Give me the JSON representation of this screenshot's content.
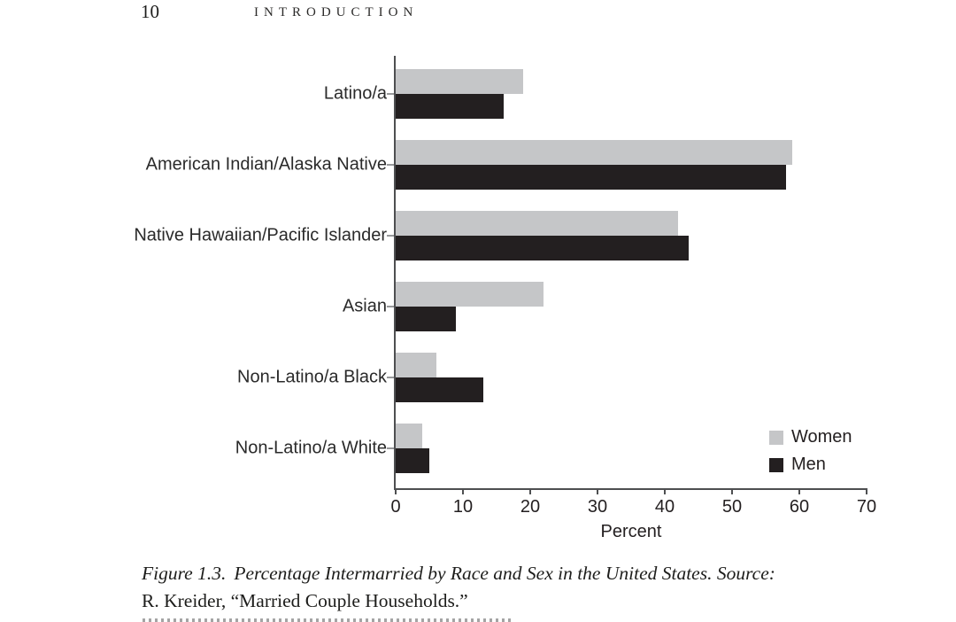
{
  "page_header": {
    "page_number": "10",
    "running_head": "INTRODUCTION"
  },
  "chart_data": {
    "type": "bar",
    "orientation": "horizontal",
    "categories": [
      "Latino/a",
      "American Indian/Alaska Native",
      "Native Hawaiian/Pacific Islander",
      "Asian",
      "Non-Latino/a Black",
      "Non-Latino/a White"
    ],
    "series": [
      {
        "name": "Women",
        "color": "#c5c6c8",
        "values": [
          19,
          59,
          42,
          22,
          6,
          4
        ]
      },
      {
        "name": "Men",
        "color": "#231f20",
        "values": [
          16,
          58,
          43.5,
          9,
          13,
          5
        ]
      }
    ],
    "xlabel": "Percent",
    "xlim": [
      0,
      70
    ],
    "xticks": [
      0,
      10,
      20,
      30,
      40,
      50,
      60,
      70
    ],
    "grid": false,
    "legend_position": "bottom-right"
  },
  "caption": {
    "figure_label": "Figure 1.3.",
    "title_italic": "Percentage Intermarried by Race and Sex in the United States. Source:",
    "source_line": "R. Kreider, “Married Couple Households.”"
  }
}
